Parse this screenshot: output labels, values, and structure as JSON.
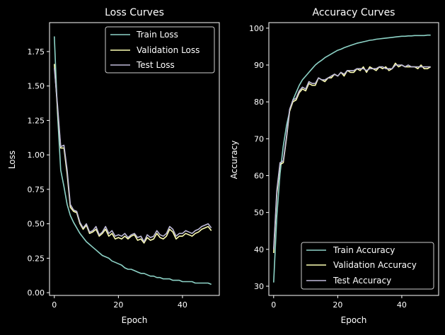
{
  "colors": {
    "background": "#000000",
    "foreground": "#ffffff",
    "train": "#8dd3c7",
    "validation": "#feffb3",
    "test": "#bfbbd9"
  },
  "chart_data": [
    {
      "type": "line",
      "title": "Loss Curves",
      "xlabel": "Epoch",
      "ylabel": "Loss",
      "xlim": [
        -1.5,
        51.5
      ],
      "ylim": [
        -0.02,
        1.96
      ],
      "xticks": [
        0,
        20,
        40
      ],
      "yticks": [
        0.0,
        0.25,
        0.5,
        0.75,
        1.0,
        1.25,
        1.5,
        1.75
      ],
      "ytick_labels": [
        "0.00",
        "0.25",
        "0.50",
        "0.75",
        "1.00",
        "1.25",
        "1.50",
        "1.75"
      ],
      "grid": false,
      "legend": "upper right",
      "x": [
        0,
        1,
        2,
        3,
        4,
        5,
        6,
        7,
        8,
        9,
        10,
        11,
        12,
        13,
        14,
        15,
        16,
        17,
        18,
        19,
        20,
        21,
        22,
        23,
        24,
        25,
        26,
        27,
        28,
        29,
        30,
        31,
        32,
        33,
        34,
        35,
        36,
        37,
        38,
        39,
        40,
        41,
        42,
        43,
        44,
        45,
        46,
        47,
        48,
        49
      ],
      "series": [
        {
          "name": "Train Loss",
          "color": "#8dd3c7",
          "values": [
            1.86,
            1.3,
            0.89,
            0.77,
            0.64,
            0.56,
            0.51,
            0.47,
            0.43,
            0.4,
            0.37,
            0.35,
            0.33,
            0.31,
            0.29,
            0.27,
            0.26,
            0.25,
            0.23,
            0.22,
            0.21,
            0.2,
            0.18,
            0.17,
            0.17,
            0.16,
            0.15,
            0.14,
            0.14,
            0.13,
            0.12,
            0.12,
            0.11,
            0.11,
            0.1,
            0.1,
            0.1,
            0.09,
            0.09,
            0.09,
            0.08,
            0.08,
            0.08,
            0.08,
            0.07,
            0.07,
            0.07,
            0.07,
            0.07,
            0.06
          ]
        },
        {
          "name": "Validation Loss",
          "color": "#feffb3",
          "values": [
            1.66,
            1.33,
            1.05,
            1.05,
            0.86,
            0.62,
            0.59,
            0.58,
            0.5,
            0.46,
            0.49,
            0.43,
            0.44,
            0.46,
            0.41,
            0.43,
            0.46,
            0.41,
            0.43,
            0.39,
            0.4,
            0.39,
            0.41,
            0.39,
            0.41,
            0.42,
            0.38,
            0.39,
            0.36,
            0.4,
            0.38,
            0.39,
            0.43,
            0.4,
            0.39,
            0.41,
            0.46,
            0.44,
            0.39,
            0.41,
            0.41,
            0.43,
            0.42,
            0.41,
            0.43,
            0.44,
            0.46,
            0.47,
            0.48,
            0.45
          ]
        },
        {
          "name": "Test Loss",
          "color": "#bfbbd9",
          "values": [
            1.63,
            1.36,
            1.06,
            1.07,
            0.89,
            0.64,
            0.6,
            0.59,
            0.51,
            0.47,
            0.5,
            0.44,
            0.45,
            0.48,
            0.42,
            0.44,
            0.48,
            0.43,
            0.45,
            0.41,
            0.42,
            0.41,
            0.43,
            0.4,
            0.42,
            0.43,
            0.4,
            0.41,
            0.37,
            0.42,
            0.4,
            0.41,
            0.45,
            0.42,
            0.41,
            0.43,
            0.48,
            0.46,
            0.41,
            0.43,
            0.43,
            0.45,
            0.44,
            0.43,
            0.45,
            0.46,
            0.48,
            0.49,
            0.5,
            0.47
          ]
        }
      ]
    },
    {
      "type": "line",
      "title": "Accuracy Curves",
      "xlabel": "Epoch",
      "ylabel": "Accuracy",
      "xlim": [
        -1.5,
        51.5
      ],
      "ylim": [
        27.5,
        101.5
      ],
      "xticks": [
        0,
        20,
        40
      ],
      "yticks": [
        30,
        40,
        50,
        60,
        70,
        80,
        90,
        100
      ],
      "ytick_labels": [
        "30",
        "40",
        "50",
        "60",
        "70",
        "80",
        "90",
        "100"
      ],
      "grid": false,
      "legend": "lower right",
      "x": [
        0,
        1,
        2,
        3,
        4,
        5,
        6,
        7,
        8,
        9,
        10,
        11,
        12,
        13,
        14,
        15,
        16,
        17,
        18,
        19,
        20,
        21,
        22,
        23,
        24,
        25,
        26,
        27,
        28,
        29,
        30,
        31,
        32,
        33,
        34,
        35,
        36,
        37,
        38,
        39,
        40,
        41,
        42,
        43,
        44,
        45,
        46,
        47,
        48,
        49
      ],
      "series": [
        {
          "name": "Train Accuracy",
          "color": "#8dd3c7",
          "values": [
            31.0,
            49.0,
            60.5,
            68.0,
            73.5,
            77.5,
            80.5,
            82.5,
            84.5,
            86.0,
            87.0,
            88.0,
            89.0,
            90.0,
            90.7,
            91.3,
            92.0,
            92.5,
            93.0,
            93.5,
            94.0,
            94.3,
            94.7,
            95.0,
            95.3,
            95.6,
            95.9,
            96.1,
            96.3,
            96.5,
            96.7,
            96.8,
            97.0,
            97.1,
            97.2,
            97.3,
            97.4,
            97.5,
            97.6,
            97.7,
            97.8,
            97.8,
            97.9,
            97.9,
            98.0,
            98.0,
            98.0,
            98.0,
            98.1,
            98.1
          ]
        },
        {
          "name": "Validation Accuracy",
          "color": "#feffb3",
          "values": [
            39.0,
            55.0,
            63.0,
            63.5,
            70.0,
            77.5,
            80.0,
            80.5,
            82.5,
            83.5,
            83.0,
            85.0,
            84.5,
            84.5,
            86.5,
            86.0,
            85.5,
            86.5,
            86.5,
            87.5,
            87.0,
            88.0,
            87.0,
            88.5,
            88.0,
            88.0,
            89.0,
            88.5,
            89.5,
            88.0,
            89.5,
            89.0,
            88.5,
            89.5,
            89.0,
            89.5,
            88.5,
            89.0,
            90.5,
            89.5,
            90.0,
            89.5,
            89.5,
            89.5,
            89.5,
            89.0,
            90.0,
            89.0,
            89.0,
            89.5
          ]
        },
        {
          "name": "Test Accuracy",
          "color": "#bfbbd9",
          "values": [
            40.0,
            56.0,
            63.5,
            64.0,
            70.5,
            78.0,
            80.5,
            81.0,
            83.0,
            84.0,
            83.5,
            85.5,
            85.0,
            85.0,
            86.5,
            86.0,
            86.0,
            86.5,
            87.0,
            87.5,
            87.0,
            88.0,
            87.5,
            88.5,
            88.5,
            88.5,
            89.0,
            89.0,
            89.0,
            88.5,
            89.0,
            89.0,
            89.0,
            89.5,
            89.5,
            89.0,
            89.0,
            89.0,
            90.0,
            90.0,
            90.0,
            89.5,
            90.0,
            89.5,
            89.5,
            89.5,
            89.5,
            89.5,
            89.5,
            89.5
          ]
        }
      ]
    }
  ]
}
